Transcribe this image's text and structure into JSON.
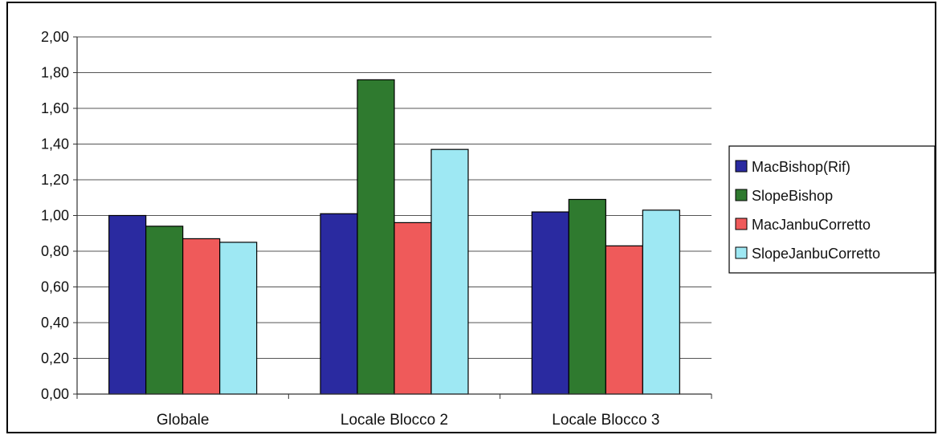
{
  "chart_data": {
    "type": "bar",
    "categories": [
      "Globale",
      "Locale Blocco 2",
      "Locale Blocco 3"
    ],
    "series": [
      {
        "name": "MacBishop(Rif)",
        "color": "#2a2aa0",
        "values": [
          1.0,
          1.01,
          1.02
        ]
      },
      {
        "name": "SlopeBishop",
        "color": "#2f7a2f",
        "values": [
          0.94,
          1.76,
          1.09
        ]
      },
      {
        "name": "MacJanbuCorretto",
        "color": "#ef5a5a",
        "values": [
          0.87,
          0.96,
          0.83
        ]
      },
      {
        "name": "SlopeJanbuCorretto",
        "color": "#9ee8f3",
        "values": [
          0.85,
          1.37,
          1.03
        ]
      }
    ],
    "ylim": [
      0,
      2.0
    ],
    "yticks": [
      "0,00",
      "0,20",
      "0,40",
      "0,60",
      "0,80",
      "1,00",
      "1,20",
      "1,40",
      "1,60",
      "1,80",
      "2,00"
    ],
    "grid": true,
    "legend_position": "right"
  }
}
